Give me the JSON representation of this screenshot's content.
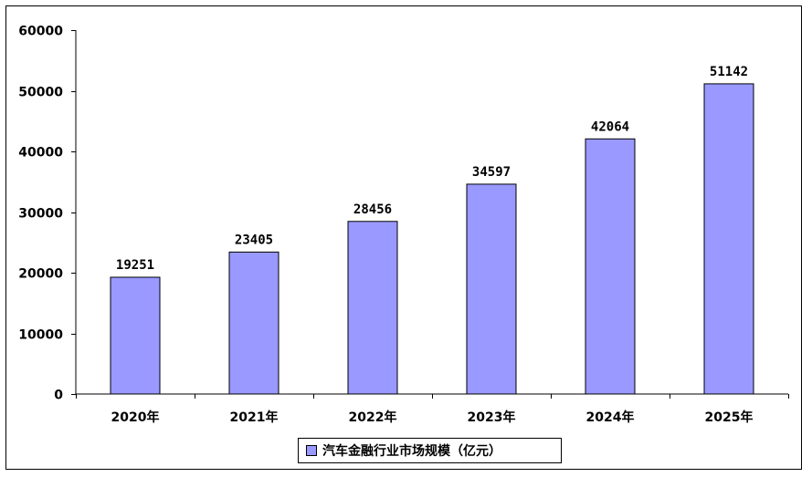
{
  "chart_data": {
    "type": "bar",
    "categories": [
      "2020年",
      "2021年",
      "2022年",
      "2023年",
      "2024年",
      "2025年"
    ],
    "series": [
      {
        "name": "汽车金融行业市场规模（亿元）",
        "values": [
          19251,
          23405,
          28456,
          34597,
          42064,
          51142
        ]
      }
    ],
    "ylim": [
      0,
      60000
    ],
    "yticks": [
      0,
      10000,
      20000,
      30000,
      40000,
      50000,
      60000
    ],
    "data_labels": [
      "19251",
      "23405",
      "28456",
      "34597",
      "42064",
      "51142"
    ],
    "grid": false,
    "legend_position": "bottom",
    "bar_color": "#9999FF"
  }
}
